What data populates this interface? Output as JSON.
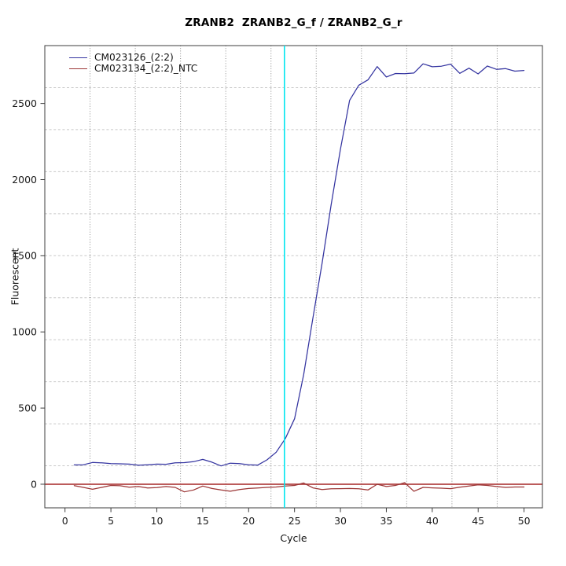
{
  "figure": {
    "title": "ZRANB2  ZRANB2_G_f / ZRANB2_G_r"
  },
  "chart_data": {
    "type": "line",
    "title": "ZRANB2  ZRANB2_G_f / ZRANB2_G_r",
    "xlabel": "Cycle",
    "ylabel": "Fluorescent",
    "xlim": [
      -2.2,
      52.0
    ],
    "ylim": [
      -155,
      2880
    ],
    "x_ticks": [
      0,
      5,
      10,
      15,
      20,
      25,
      30,
      35,
      40,
      45,
      50
    ],
    "y_ticks": [
      0,
      500,
      1000,
      1500,
      2000,
      2500
    ],
    "grid": {
      "on": true,
      "nx": 11,
      "ny": 11,
      "v_color": "#8c8c8c",
      "h_color": "#c8c8c8",
      "style": "dotted"
    },
    "threshold_line": {
      "x": 23.9,
      "color": "#00e6f0"
    },
    "zero_line": {
      "y": 0,
      "color": "#b24444"
    },
    "legend_position": "top-left",
    "x": [
      1,
      2,
      3,
      4,
      5,
      6,
      7,
      8,
      9,
      10,
      11,
      12,
      13,
      14,
      15,
      16,
      17,
      18,
      19,
      20,
      21,
      22,
      23,
      24,
      25,
      26,
      27,
      28,
      29,
      30,
      31,
      32,
      33,
      34,
      35,
      36,
      37,
      38,
      39,
      40,
      41,
      42,
      43,
      44,
      45,
      46,
      47,
      48,
      49,
      50
    ],
    "series": [
      {
        "name": "CM023126_(2:2)",
        "color": "#3434a0",
        "values": [
          127,
          128,
          143,
          140,
          135,
          134,
          132,
          125,
          128,
          132,
          131,
          140,
          142,
          148,
          163,
          145,
          120,
          138,
          135,
          128,
          126,
          160,
          210,
          300,
          430,
          720,
          1090,
          1450,
          1840,
          2200,
          2520,
          2620,
          2655,
          2742,
          2674,
          2697,
          2695,
          2700,
          2760,
          2741,
          2745,
          2758,
          2698,
          2732,
          2694,
          2746,
          2724,
          2729,
          2712,
          2717
        ]
      },
      {
        "name": "CM023134_(2:2)_NTC",
        "color": "#9c3636",
        "values": [
          -9,
          -21,
          -33,
          -21,
          -8,
          -10,
          -20,
          -15,
          -25,
          -22,
          -15,
          -21,
          -50,
          -38,
          -12,
          -28,
          -38,
          -46,
          -35,
          -28,
          -25,
          -21,
          -18,
          -12,
          -8,
          8,
          -24,
          -35,
          -30,
          -29,
          -28,
          -30,
          -38,
          0,
          -15,
          -8,
          10,
          -46,
          -21,
          -24,
          -26,
          -29,
          -20,
          -12,
          -4,
          -8,
          -15,
          -21,
          -18,
          -18
        ]
      }
    ]
  }
}
